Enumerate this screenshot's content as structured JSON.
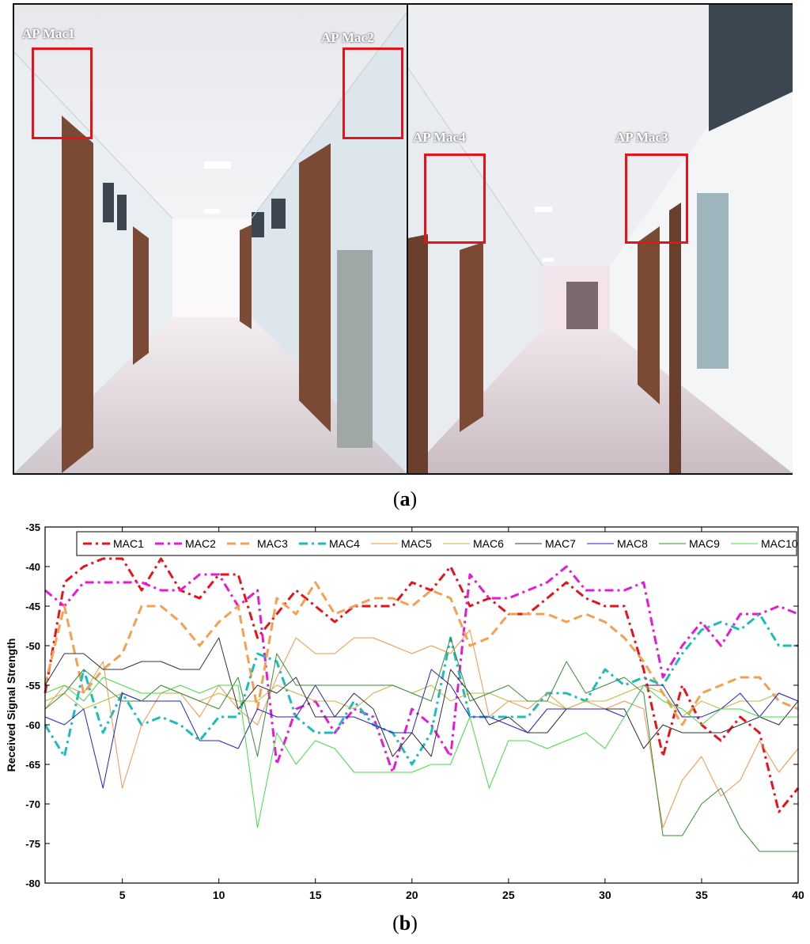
{
  "figure": {
    "panel_a": {
      "caption_open": "(",
      "caption_letter": "a",
      "caption_close": ")"
    },
    "panel_b": {
      "caption_open": "(",
      "caption_letter": "b",
      "caption_close": ")"
    },
    "ap_labels": [
      "AP Mac1",
      "AP Mac2",
      "AP Mac3",
      "AP Mac4"
    ],
    "ap_box_color": "#e8121b"
  },
  "chart_data": {
    "type": "line",
    "title": "",
    "xlabel": "",
    "ylabel": "Received Signal Strength",
    "xlim": [
      1,
      40
    ],
    "ylim": [
      -80,
      -35
    ],
    "xticks": [
      5,
      10,
      15,
      20,
      25,
      30,
      35,
      40
    ],
    "yticks": [
      -80,
      -75,
      -70,
      -65,
      -60,
      -55,
      -50,
      -45,
      -40,
      -35
    ],
    "grid": false,
    "legend": "top",
    "x": [
      1,
      2,
      3,
      4,
      5,
      6,
      7,
      8,
      9,
      10,
      11,
      12,
      13,
      14,
      15,
      16,
      17,
      18,
      19,
      20,
      21,
      22,
      23,
      24,
      25,
      26,
      27,
      28,
      29,
      30,
      31,
      32,
      33,
      34,
      35,
      36,
      37,
      38,
      39,
      40
    ],
    "series": [
      {
        "name": "MAC1",
        "color": "#e8121b",
        "dash": "dashdot",
        "width": 3,
        "values": [
          -56,
          -42,
          -40,
          -39,
          -39,
          -43,
          -39,
          -43,
          -44,
          -41,
          -41,
          -49,
          -46,
          -43,
          -45,
          -47,
          -45,
          -45,
          -45,
          -42,
          -43,
          -40,
          -45,
          -44,
          -46,
          -46,
          -44,
          -42,
          -44,
          -45,
          -45,
          -53,
          -64,
          -55,
          -60,
          -62,
          -59,
          -61,
          -71,
          -68
        ]
      },
      {
        "name": "MAC2",
        "color": "#e51ad9",
        "dash": "dashdot",
        "width": 3,
        "values": [
          -43,
          -45,
          -42,
          -42,
          -42,
          -42,
          -43,
          -43,
          -41,
          -41,
          -45,
          -43,
          -65,
          -58,
          -57,
          -61,
          -58,
          -59,
          -66,
          -58,
          -60,
          -64,
          -41,
          -44,
          -44,
          -43,
          -42,
          -40,
          -43,
          -43,
          -43,
          -42,
          -54,
          -50,
          -47,
          -50,
          -46,
          -46,
          -45,
          -46
        ]
      },
      {
        "name": "MAC3",
        "color": "#f5a050",
        "dash": "dash",
        "width": 3,
        "values": [
          -55,
          -45,
          -56,
          -53,
          -51,
          -45,
          -45,
          -47,
          -50,
          -47,
          -45,
          -58,
          -44,
          -46,
          -42,
          -46,
          -45,
          -44,
          -44,
          -45,
          -43,
          -44,
          -50,
          -49,
          -46,
          -46,
          -46,
          -47,
          -46,
          -47,
          -49,
          -52,
          -56,
          -60,
          -56,
          -55,
          -54,
          -54,
          -57,
          -58
        ]
      },
      {
        "name": "MAC4",
        "color": "#1cbcbc",
        "dash": "dashdot",
        "width": 3,
        "values": [
          -60,
          -64,
          -53,
          -61,
          -56,
          -60,
          -59,
          -60,
          -62,
          -59,
          -59,
          -51,
          -52,
          -59,
          -61,
          -61,
          -57,
          -60,
          -61,
          -65,
          -61,
          -49,
          -59,
          -59,
          -59,
          -59,
          -56,
          -56,
          -57,
          -53,
          -55,
          -54,
          -55,
          -51,
          -48,
          -47,
          -48,
          -46,
          -50,
          -50
        ]
      },
      {
        "name": "MAC5",
        "color": "#f0964a",
        "dash": "solid",
        "width": 1,
        "values": [
          -58,
          -55,
          -56,
          -52,
          -68,
          -60,
          -56,
          -56,
          -59,
          -55,
          -58,
          -60,
          -54,
          -49,
          -51,
          -51,
          -49,
          -49,
          -50,
          -51,
          -50,
          -51,
          -48,
          -59,
          -57,
          -58,
          -56,
          -58,
          -57,
          -58,
          -57,
          -58,
          -73,
          -67,
          -64,
          -69,
          -67,
          -62,
          -66,
          -63
        ]
      },
      {
        "name": "MAC6",
        "color": "#c8b43c",
        "dash": "solid",
        "width": 1,
        "values": [
          -57,
          -56,
          -58,
          -57,
          -56,
          -57,
          -55,
          -56,
          -57,
          -56,
          -57,
          -57,
          -55,
          -56,
          -57,
          -57,
          -58,
          -56,
          -55,
          -56,
          -55,
          -57,
          -56,
          -56,
          -57,
          -57,
          -57,
          -58,
          -57,
          -57,
          -56,
          -55,
          -56,
          -59,
          -57,
          -58,
          -57,
          -57,
          -56,
          -57
        ]
      },
      {
        "name": "MAC7",
        "color": "#333333",
        "dash": "solid",
        "width": 1,
        "values": [
          -55,
          -51,
          -51,
          -53,
          -53,
          -52,
          -52,
          -53,
          -53,
          -49,
          -58,
          -55,
          -56,
          -54,
          -59,
          -59,
          -56,
          -58,
          -64,
          -61,
          -64,
          -53,
          -56,
          -60,
          -59,
          -61,
          -61,
          -58,
          -58,
          -58,
          -58,
          -63,
          -60,
          -61,
          -61,
          -61,
          -60,
          -59,
          -60,
          -57
        ]
      },
      {
        "name": "MAC8",
        "color": "#2222cc",
        "dash": "solid",
        "width": 1,
        "values": [
          -59,
          -60,
          -58,
          -68,
          -56,
          -57,
          -57,
          -57,
          -62,
          -62,
          -63,
          -58,
          -59,
          -59,
          -55,
          -59,
          -59,
          -60,
          -61,
          -61,
          -53,
          -55,
          -59,
          -59,
          -60,
          -61,
          -58,
          -58,
          -58,
          -58,
          -59,
          -55,
          -55,
          -59,
          -59,
          -58,
          -56,
          -59,
          -56,
          -57
        ]
      },
      {
        "name": "MAC9",
        "color": "#3a8a3a",
        "dash": "solid",
        "width": 1,
        "values": [
          -58,
          -56,
          -53,
          -55,
          -57,
          -57,
          -55,
          -56,
          -57,
          -58,
          -54,
          -64,
          -51,
          -55,
          -55,
          -55,
          -55,
          -55,
          -55,
          -56,
          -57,
          -49,
          -57,
          -56,
          -55,
          -57,
          -57,
          -52,
          -56,
          -55,
          -54,
          -56,
          -74,
          -74,
          -70,
          -68,
          -73,
          -76,
          -76,
          -76
        ]
      },
      {
        "name": "MAC10",
        "color": "#44dd44",
        "dash": "solid",
        "width": 1,
        "values": [
          -56,
          -55,
          -57,
          -54,
          -55,
          -56,
          -56,
          -55,
          -56,
          -55,
          -55,
          -73,
          -61,
          -65,
          -62,
          -63,
          -66,
          -66,
          -66,
          -66,
          -65,
          -65,
          -59,
          -68,
          -62,
          -62,
          -63,
          -62,
          -61,
          -63,
          -59,
          -55,
          -57,
          -58,
          -60,
          -58,
          -58,
          -59,
          -59,
          -59
        ]
      }
    ]
  }
}
